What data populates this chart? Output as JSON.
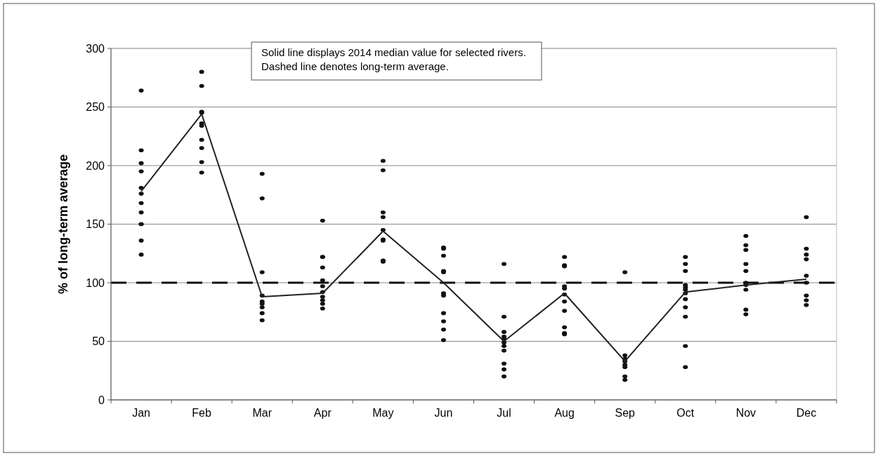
{
  "chart_data": {
    "type": "scatter",
    "ylabel": "% of long-term average",
    "categories": [
      "Jan",
      "Feb",
      "Mar",
      "Apr",
      "May",
      "Jun",
      "Jul",
      "Aug",
      "Sep",
      "Oct",
      "Nov",
      "Dec"
    ],
    "series": [
      {
        "color": "#111111",
        "marker": "circle",
        "x": [
          "Jan",
          "Jan",
          "Jan",
          "Jan",
          "Jan",
          "Jan",
          "Jan",
          "Jan",
          "Jan",
          "Jan",
          "Jan",
          "Jan",
          "Feb",
          "Feb",
          "Feb",
          "Feb",
          "Feb",
          "Feb",
          "Feb",
          "Feb",
          "Feb",
          "Feb",
          "Mar",
          "Mar",
          "Mar",
          "Mar",
          "Mar",
          "Mar",
          "Mar",
          "Mar",
          "Mar",
          "Apr",
          "Apr",
          "Apr",
          "Apr",
          "Apr",
          "Apr",
          "Apr",
          "Apr",
          "Apr",
          "Apr",
          "Apr",
          "May",
          "May",
          "May",
          "May",
          "May",
          "May",
          "May",
          "May",
          "May",
          "Jun",
          "Jun",
          "Jun",
          "Jun",
          "Jun",
          "Jun",
          "Jun",
          "Jun",
          "Jun",
          "Jun",
          "Jun",
          "Jul",
          "Jul",
          "Jul",
          "Jul",
          "Jul",
          "Jul",
          "Jul",
          "Jul",
          "Jul",
          "Jul",
          "Jul",
          "Aug",
          "Aug",
          "Aug",
          "Aug",
          "Aug",
          "Aug",
          "Aug",
          "Aug",
          "Aug",
          "Aug",
          "Aug",
          "Sep",
          "Sep",
          "Sep",
          "Sep",
          "Sep",
          "Sep",
          "Sep",
          "Sep",
          "Oct",
          "Oct",
          "Oct",
          "Oct",
          "Oct",
          "Oct",
          "Oct",
          "Oct",
          "Oct",
          "Oct",
          "Oct",
          "Oct",
          "Nov",
          "Nov",
          "Nov",
          "Nov",
          "Nov",
          "Nov",
          "Nov",
          "Nov",
          "Nov",
          "Nov",
          "Dec",
          "Dec",
          "Dec",
          "Dec",
          "Dec",
          "Dec",
          "Dec",
          "Dec",
          "Dec"
        ],
        "values": [
          264,
          213,
          202,
          195,
          181,
          176,
          168,
          160,
          150,
          150,
          136,
          124,
          280,
          268,
          246,
          245,
          236,
          234,
          222,
          215,
          203,
          194,
          193,
          172,
          109,
          89,
          84,
          82,
          79,
          74,
          68,
          153,
          122,
          122,
          113,
          102,
          97,
          92,
          88,
          85,
          82,
          78,
          204,
          196,
          160,
          156,
          145,
          137,
          136,
          119,
          118,
          130,
          129,
          123,
          110,
          109,
          91,
          89,
          74,
          67,
          60,
          51,
          116,
          71,
          58,
          54,
          52,
          49,
          46,
          42,
          31,
          26,
          20,
          122,
          115,
          114,
          97,
          95,
          90,
          84,
          76,
          62,
          57,
          56,
          109,
          38,
          35,
          33,
          30,
          28,
          20,
          17,
          122,
          116,
          110,
          98,
          96,
          94,
          91,
          86,
          79,
          71,
          46,
          28,
          140,
          132,
          128,
          116,
          110,
          100,
          98,
          94,
          77,
          73,
          156,
          129,
          124,
          120,
          106,
          100,
          89,
          85,
          81
        ]
      },
      {
        "type": "line",
        "color": "#222222",
        "marker": "none",
        "line_style": "solid",
        "values": [
          178,
          244,
          88,
          91,
          144,
          100,
          50,
          91,
          33,
          92,
          98,
          103
        ]
      }
    ],
    "ref_lines": [
      {
        "axis": "y",
        "value": 100,
        "color": "#111111",
        "line_style": "dashed"
      }
    ],
    "annotations": [
      "Solid line displays 2014 median value for selected rivers.\nDashed line denotes long-term average."
    ],
    "ylim": [
      0,
      300
    ],
    "yticks": [
      0,
      50,
      100,
      150,
      200,
      250,
      300
    ],
    "grid": "y"
  }
}
